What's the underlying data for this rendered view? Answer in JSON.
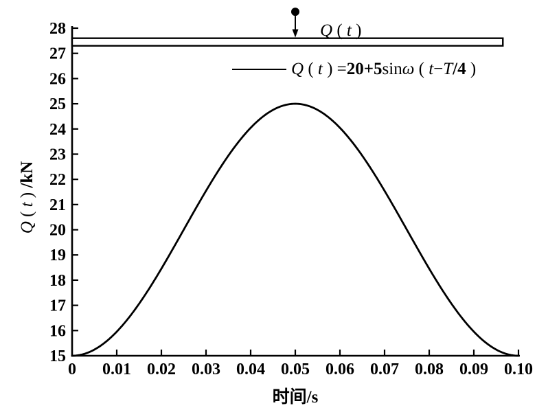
{
  "figure": {
    "background": "#ffffff",
    "ink": "#000000"
  },
  "chart_data": {
    "type": "line",
    "title": "",
    "xlabel": "时间/s",
    "ylabel": "Q ( t ) /kN",
    "grid": false,
    "legend_position": "upper center, below beam",
    "x_axis": {
      "min": 0,
      "max": 0.1,
      "tick_values": [
        0,
        0.01,
        0.02,
        0.03,
        0.04,
        0.05,
        0.06,
        0.07,
        0.08,
        0.09,
        0.1
      ],
      "tick_labels": [
        "0",
        "0.01",
        "0.02",
        "0.03",
        "0.04",
        "0.05",
        "0.06",
        "0.07",
        "0.08",
        "0.09",
        "0.10"
      ]
    },
    "y_axis": {
      "min": 15,
      "max": 28,
      "tick_values": [
        15,
        16,
        17,
        18,
        19,
        20,
        21,
        22,
        23,
        24,
        25,
        26,
        27,
        28
      ],
      "tick_labels": [
        "15",
        "16",
        "17",
        "18",
        "19",
        "20",
        "21",
        "22",
        "23",
        "24",
        "25",
        "26",
        "27",
        "28"
      ]
    },
    "series": [
      {
        "name": "Q(t)=20+5sinω(t−T/4)",
        "function": "Q(t) = offset + amplitude * sin(2π/period * (t − period/4))",
        "offset": 20,
        "amplitude": 5,
        "period": 0.1,
        "phase_shift": "T/4",
        "sample_points": {
          "t": [
            0,
            0.01,
            0.02,
            0.03,
            0.04,
            0.05,
            0.06,
            0.07,
            0.08,
            0.09,
            0.1
          ],
          "q": [
            15,
            15.955,
            18.455,
            21.545,
            24.045,
            25,
            24.045,
            21.545,
            18.455,
            15.955,
            15
          ]
        }
      }
    ],
    "annotations": {
      "beam": {
        "shape": "hollow-rectangle",
        "x_start_value": 0,
        "x_end_value": 0.0965,
        "y_top_value": 27.6,
        "y_bottom_value": 27.3
      },
      "load": {
        "x_value": 0.05,
        "dot_y_value": 28.65,
        "dot_radius": 6,
        "label": "Q ( t )"
      }
    }
  },
  "texts": {
    "load_label": {
      "q": "Q",
      "lp": " ( ",
      "t": "t",
      "rp": " )"
    },
    "legend": {
      "q": "Q",
      "lp1": " ( ",
      "t1": "t",
      "rp1": " ) =",
      "coef": "20+5",
      "sin": "sin",
      "omega": "ω",
      "lp2": " ( ",
      "t2": "t",
      "minus": "−",
      "T": "T",
      "frac": "/4",
      "rp2": " )"
    },
    "ylabel": {
      "q": "Q",
      "lp": " ( ",
      "t": "t",
      "rp": " ) ",
      "unit": "/kN"
    }
  }
}
